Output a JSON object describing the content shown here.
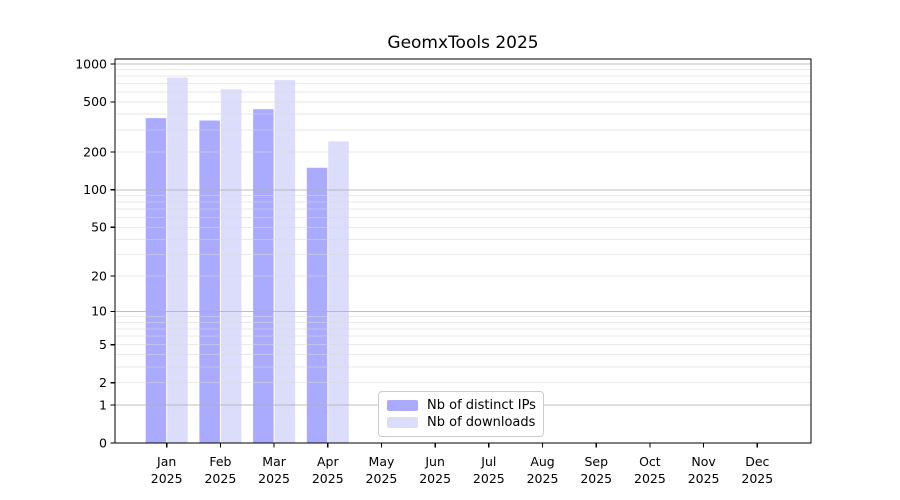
{
  "chart_data": {
    "type": "bar",
    "title": "GeomxTools 2025",
    "xlabel": "",
    "ylabel": "",
    "year_label": "2025",
    "categories": [
      "Jan",
      "Feb",
      "Mar",
      "Apr",
      "May",
      "Jun",
      "Jul",
      "Aug",
      "Sep",
      "Oct",
      "Nov",
      "Dec"
    ],
    "series": [
      {
        "name": "Nb of distinct IPs",
        "color": "#aaaaff",
        "values": [
          372,
          356,
          438,
          150,
          null,
          null,
          null,
          null,
          null,
          null,
          null,
          null
        ]
      },
      {
        "name": "Nb of downloads",
        "color": "#dcdcfb",
        "values": [
          780,
          630,
          745,
          243,
          null,
          null,
          null,
          null,
          null,
          null,
          null,
          null
        ]
      }
    ],
    "y_scale": "log1p",
    "y_ticks": [
      0,
      1,
      2,
      5,
      10,
      20,
      50,
      100,
      200,
      500,
      1000
    ],
    "y_major_grid": [
      1,
      10,
      100,
      1000
    ],
    "y_minor_grid": [
      2,
      3,
      4,
      5,
      6,
      7,
      8,
      9,
      20,
      30,
      40,
      50,
      60,
      70,
      80,
      90,
      200,
      300,
      400,
      500,
      600,
      700,
      800,
      900
    ],
    "ylim": [
      0,
      1095
    ],
    "grid": true,
    "legend_position": "inside-lower-center",
    "colors": {
      "axis": "#000000",
      "tick_text": "#000000",
      "major_grid": "#b0b0b0",
      "minor_grid": "#d9d9d9",
      "legend_border": "#cccccc",
      "background": "#ffffff"
    }
  }
}
